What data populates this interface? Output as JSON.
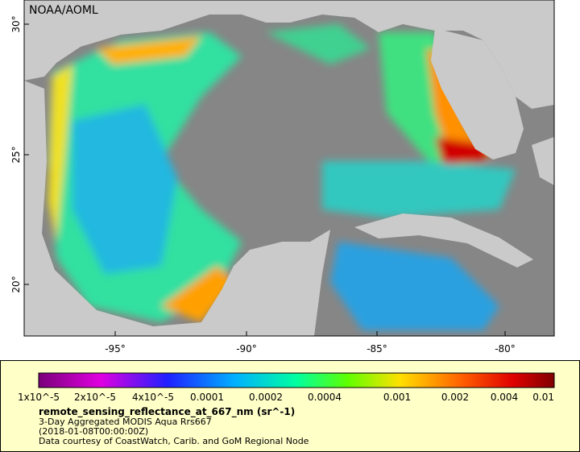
{
  "map": {
    "credit": "NOAA/AOML",
    "lat_ticks": [
      "30°",
      "25°",
      "20°"
    ],
    "lon_ticks": [
      "-95°",
      "-90°",
      "-85°",
      "-80°"
    ],
    "colorbar": {
      "ticks": [
        "1x10^-5",
        "2x10^-5",
        "4x10^-5",
        "0.0001",
        "0.0002",
        "0.0004",
        "0.001",
        "0.002",
        "0.004",
        "0.01"
      ]
    },
    "legend": {
      "title": "remote_sensing_reflectance_at_667_nm (sr^-1)",
      "lines": [
        "3-Day Aggregated MODIS Aqua Rrs667",
        "(2018-01-08T00:00:00Z)",
        "Data courtesy of CoastWatch, Carib. and GoM Regional Node"
      ]
    }
  }
}
